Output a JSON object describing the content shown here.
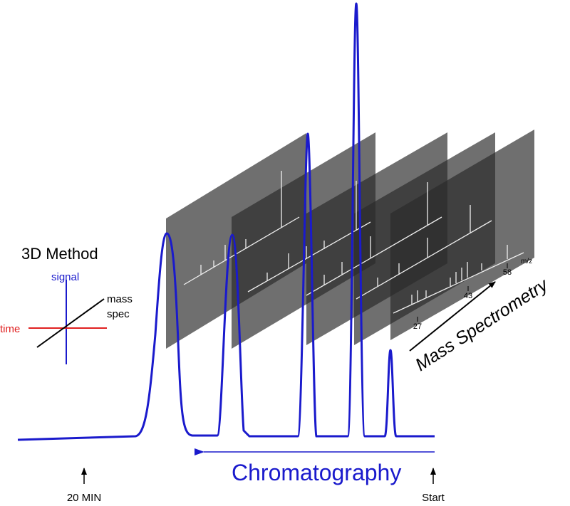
{
  "legend": {
    "title": "3D Method",
    "signal": "signal",
    "mass_spec": [
      "mass",
      "spec"
    ],
    "time": "time"
  },
  "spectrum": {
    "axis_label": "m/z",
    "peaks": [
      58,
      43,
      27
    ]
  },
  "arrows": {
    "mass_spectrometry": "Mass Spectrometry",
    "chromatography": "Chromatography"
  },
  "time_marks": {
    "end": "20 MIN",
    "start": "Start"
  }
}
